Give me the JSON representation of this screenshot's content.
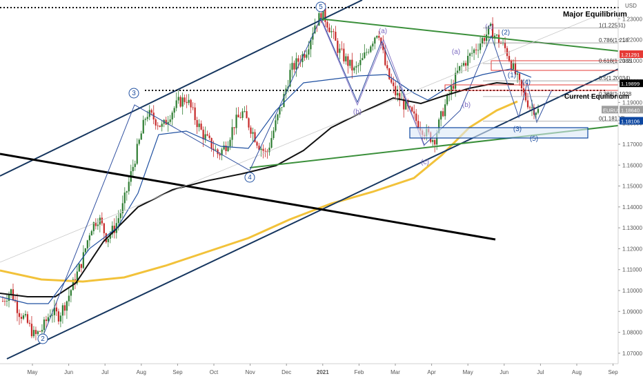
{
  "chart_data": {
    "type": "candlestick",
    "instrument": "EURUSD",
    "currency_label": "USD",
    "x_ticks": [
      "May",
      "Jun",
      "Jul",
      "Aug",
      "Sep",
      "Oct",
      "Nov",
      "Dec",
      "2021",
      "Feb",
      "Mar",
      "Apr",
      "May",
      "Jun",
      "Jul",
      "Aug",
      "Sep"
    ],
    "y_ticks": [
      "1.23000",
      "1.22000",
      "1.21000",
      "1.20000",
      "1.19000",
      "1.18000",
      "1.17000",
      "1.16000",
      "1.15000",
      "1.14000",
      "1.13000",
      "1.12000",
      "1.11000",
      "1.10000",
      "1.09000",
      "1.08000",
      "1.07000"
    ],
    "ylim": [
      1.065,
      1.239
    ],
    "price_tags": [
      {
        "label": "1.21291",
        "value": 1.21291,
        "color": "#e53935"
      },
      {
        "label": "1.19899",
        "value": 1.19899,
        "color": "#000000"
      },
      {
        "label": "EURUSD",
        "value": 1.1864,
        "color": "#9e9e9e"
      },
      {
        "label": "1.18640",
        "value": 1.1864,
        "color": "#9e9e9e"
      },
      {
        "label": "1.18106",
        "value": 1.18106,
        "color": "#0d47a1"
      }
    ],
    "annotations": {
      "major_equilibrium": "Major Equilibrium",
      "current_equilibrium": "Current Equilibrium"
    },
    "fib_levels": [
      {
        "label": "1(1.22561)",
        "value": 1.22561
      },
      {
        "label": "0.786(1.218",
        "value": 1.2185
      },
      {
        "label": "0.618(1.2086",
        "value": 1.2086
      },
      {
        "label": "0.5(1.20034)",
        "value": 1.20034
      },
      {
        "label": "0.382(1.1928",
        "value": 1.1928
      },
      {
        "label": "0(1.18107)",
        "value": 1.18107
      }
    ],
    "wave_labels": [
      "2",
      "3",
      "4",
      "5",
      "(a)",
      "(b)",
      "(c)",
      "(a)",
      "(b)",
      "(c)",
      "(2)",
      "(1)",
      "(3)",
      "(4)",
      "(5)"
    ],
    "price_path": [
      [
        1.095,
        1.1,
        1.09,
        1.085,
        1.078,
        1.082,
        1.09,
        1.088,
        1.095,
        1.105,
        1.115,
        1.13,
        1.135,
        1.125,
        1.13,
        1.14,
        1.155,
        1.17,
        1.185,
        1.182,
        1.178,
        1.185,
        1.19,
        1.192,
        1.183,
        1.175,
        1.17,
        1.165,
        1.17,
        1.18,
        1.185,
        1.178,
        1.17,
        1.165,
        1.178,
        1.19,
        1.205,
        1.21,
        1.215,
        1.227,
        1.233,
        1.225,
        1.215,
        1.21,
        1.205,
        1.21,
        1.218,
        1.225,
        1.205,
        1.195,
        1.19,
        1.185,
        1.18,
        1.175,
        1.172,
        1.185,
        1.195,
        1.205,
        1.21,
        1.215,
        1.22,
        1.225,
        1.22,
        1.215,
        1.205,
        1.195,
        1.188,
        1.186
      ]
    ]
  }
}
